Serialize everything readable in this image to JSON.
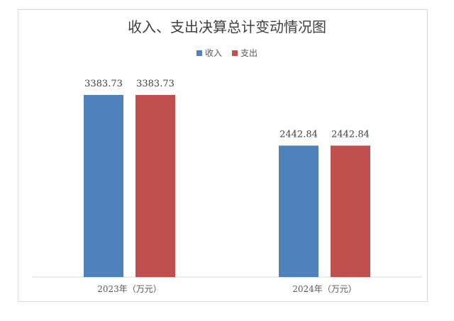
{
  "chart_data": {
    "type": "bar",
    "title": "收入、支出决算总计变动情况图",
    "categories": [
      "2023年（万元）",
      "2024年（万元）"
    ],
    "series": [
      {
        "name": "收入",
        "color": "#4f81bd",
        "values": [
          3383.73,
          2442.84
        ]
      },
      {
        "name": "支出",
        "color": "#c0504d",
        "values": [
          3383.73,
          2442.84
        ]
      }
    ],
    "data_labels": [
      [
        "3383.73",
        "2442.84"
      ],
      [
        "3383.73",
        "2442.84"
      ]
    ],
    "ylim": [
      0,
      4000
    ],
    "grid": false,
    "legend_position": "top"
  }
}
